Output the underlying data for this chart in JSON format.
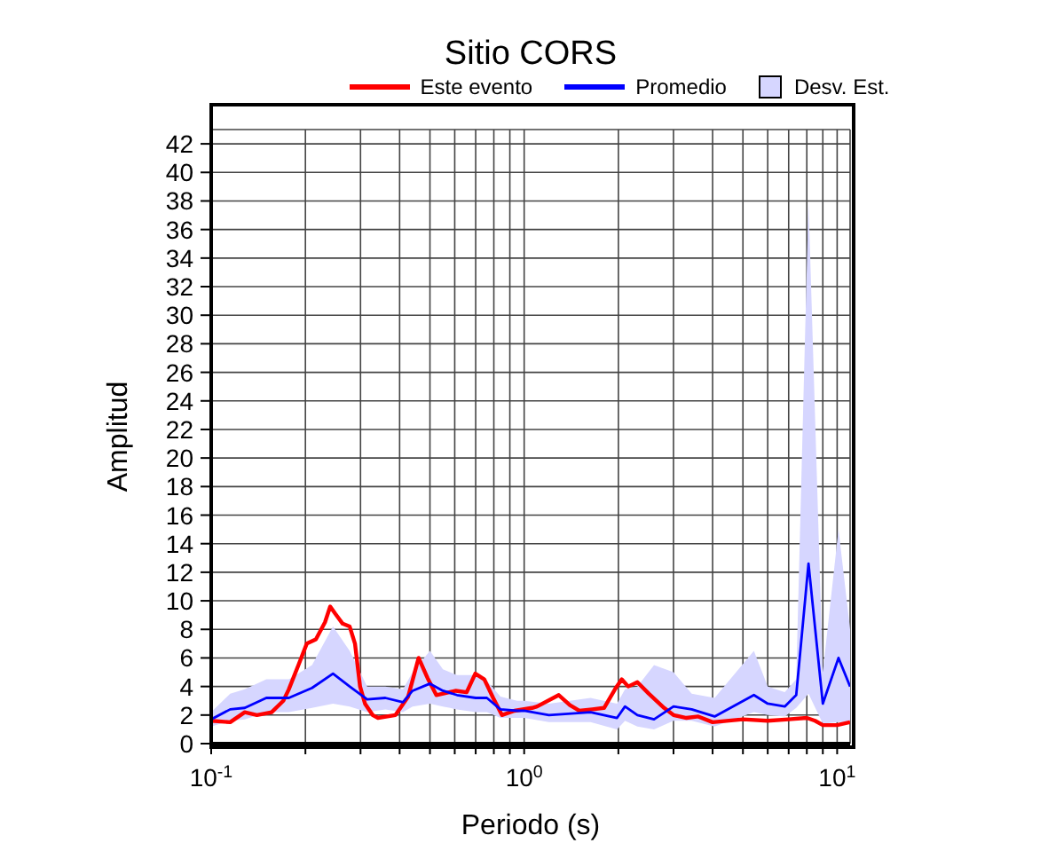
{
  "chart_data": {
    "type": "line",
    "title": "Sitio CORS",
    "xlabel": "Periodo (s)",
    "ylabel": "Amplitud",
    "log": "x",
    "grid": true,
    "legend": "top",
    "annotations": [
      "Desv. Est."
    ],
    "xlim": [
      0.1,
      11
    ],
    "xticks": [
      {
        "value": 0.1,
        "label": "10$^{-1}$"
      },
      {
        "value": 0.2,
        "label": null
      },
      {
        "value": 0.3,
        "label": null
      },
      {
        "value": 0.4,
        "label": null
      },
      {
        "value": 0.5,
        "label": null
      },
      {
        "value": 0.6,
        "label": null
      },
      {
        "value": 0.7,
        "label": null
      },
      {
        "value": 0.8,
        "label": null
      },
      {
        "value": 0.9,
        "label": null
      },
      {
        "value": 1,
        "label": "10$^{0}$"
      },
      {
        "value": 2,
        "label": null
      },
      {
        "value": 3,
        "label": null
      },
      {
        "value": 4,
        "label": null
      },
      {
        "value": 5,
        "label": null
      },
      {
        "value": 6,
        "label": null
      },
      {
        "value": 7,
        "label": null
      },
      {
        "value": 8,
        "label": null
      },
      {
        "value": 9,
        "label": null
      },
      {
        "value": 10,
        "label": "10$^{1}$"
      }
    ],
    "ylim": [
      0,
      43
    ],
    "yticks": [
      0,
      2,
      4,
      6,
      8,
      10,
      12,
      14,
      16,
      18,
      20,
      22,
      24,
      26,
      28,
      30,
      32,
      34,
      36,
      38,
      40,
      42
    ],
    "series": [
      {
        "name": "Este evento",
        "color": "#ff0000",
        "x": [
          0.1,
          0.115,
          0.128,
          0.14,
          0.156,
          0.17,
          0.177,
          0.19,
          0.202,
          0.216,
          0.231,
          0.24,
          0.249,
          0.263,
          0.277,
          0.288,
          0.299,
          0.31,
          0.328,
          0.341,
          0.388,
          0.426,
          0.46,
          0.491,
          0.524,
          0.605,
          0.655,
          0.698,
          0.746,
          0.796,
          0.849,
          0.931,
          1.06,
          1.1,
          1.29,
          1.4,
          1.5,
          1.65,
          1.8,
          1.95,
          2.05,
          2.15,
          2.3,
          2.5,
          2.8,
          3.0,
          3.3,
          3.6,
          4.0,
          5,
          6,
          7,
          8,
          8.5,
          9,
          10,
          11
        ],
        "values": [
          1.6,
          1.5,
          2.2,
          2.0,
          2.2,
          3.0,
          3.8,
          5.5,
          7.0,
          7.3,
          8.5,
          9.6,
          9.1,
          8.4,
          8.2,
          7.0,
          4.0,
          2.8,
          2.0,
          1.8,
          2.0,
          3.3,
          6.0,
          4.6,
          3.4,
          3.7,
          3.6,
          4.9,
          4.5,
          3.2,
          2.0,
          2.3,
          2.5,
          2.6,
          3.4,
          2.7,
          2.3,
          2.4,
          2.5,
          3.8,
          4.5,
          4.0,
          4.3,
          3.5,
          2.5,
          2.0,
          1.8,
          1.9,
          1.5,
          1.7,
          1.6,
          1.7,
          1.8,
          1.6,
          1.3,
          1.3,
          1.5
        ]
      },
      {
        "name": "Promedio",
        "color": "#0000ff",
        "x": [
          0.1,
          0.115,
          0.128,
          0.15,
          0.177,
          0.21,
          0.245,
          0.277,
          0.315,
          0.36,
          0.41,
          0.44,
          0.5,
          0.55,
          0.61,
          0.7,
          0.76,
          0.84,
          0.95,
          1.0,
          1.2,
          1.63,
          1.98,
          2.1,
          2.3,
          2.6,
          3.0,
          3.43,
          4.06,
          5.42,
          6.0,
          6.8,
          7.4,
          8.1,
          9.0,
          10.1,
          11
        ],
        "values": [
          1.7,
          2.4,
          2.5,
          3.2,
          3.2,
          3.9,
          4.9,
          4.0,
          3.1,
          3.2,
          2.9,
          3.7,
          4.2,
          3.7,
          3.4,
          3.2,
          3.2,
          2.4,
          2.3,
          2.3,
          2.0,
          2.2,
          1.8,
          2.6,
          2.0,
          1.7,
          2.6,
          2.4,
          1.9,
          3.4,
          2.8,
          2.6,
          3.4,
          12.6,
          2.8,
          6.0,
          4.0
        ],
        "upper": [
          2.2,
          3.5,
          3.8,
          4.5,
          4.5,
          5.5,
          8.2,
          6.5,
          4.0,
          4.0,
          3.8,
          5.0,
          6.5,
          5.2,
          4.8,
          4.8,
          4.4,
          3.3,
          3.0,
          3.0,
          2.8,
          3.2,
          2.8,
          3.8,
          4.0,
          5.5,
          5.0,
          3.5,
          3.2,
          6.5,
          4.0,
          3.6,
          4.5,
          38,
          5.0,
          15,
          8
        ],
        "lower": [
          1.2,
          1.6,
          1.7,
          2.2,
          2.2,
          2.5,
          2.8,
          2.6,
          2.2,
          2.4,
          2.2,
          2.6,
          2.8,
          2.6,
          2.4,
          2.2,
          2.2,
          1.8,
          1.8,
          1.8,
          1.5,
          1.5,
          1.0,
          1.6,
          1.2,
          1.0,
          1.6,
          1.6,
          1.2,
          2.2,
          2.0,
          1.9,
          2.5,
          3.5,
          1.4,
          1.5,
          1.5
        ]
      }
    ]
  }
}
